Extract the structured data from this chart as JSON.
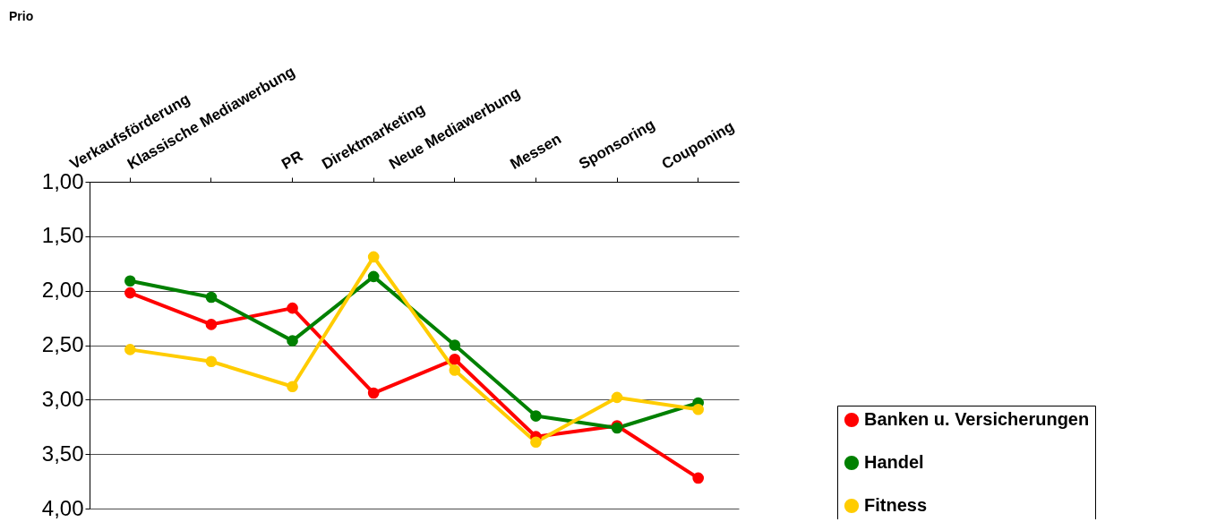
{
  "chart_data": {
    "type": "line",
    "annotations": [
      "Prio"
    ],
    "categories": [
      "Verkaufsförderung",
      "Klassische Mediawerbung",
      "PR",
      "Direktmarketing",
      "Neue Mediawerbung",
      "Messen",
      "Sponsoring",
      "Couponing"
    ],
    "series": [
      {
        "name": "Banken u. Versicherungen",
        "color": "#ff0000",
        "values": [
          2.02,
          2.31,
          2.16,
          2.94,
          2.63,
          3.34,
          3.24,
          3.72
        ]
      },
      {
        "name": "Handel",
        "color": "#008000",
        "values": [
          1.91,
          2.06,
          2.46,
          1.87,
          2.5,
          3.15,
          3.26,
          3.03
        ]
      },
      {
        "name": "Fitness",
        "color": "#ffcc00",
        "values": [
          2.54,
          2.65,
          2.88,
          1.69,
          2.73,
          3.39,
          2.98,
          3.09
        ]
      }
    ],
    "ylim": [
      4,
      1
    ],
    "yticks": [
      {
        "value": 1,
        "label": "1,00"
      },
      {
        "value": 1.5,
        "label": "1,50"
      },
      {
        "value": 2,
        "label": "2,00"
      },
      {
        "value": 2.5,
        "label": "2,50"
      },
      {
        "value": 3,
        "label": "3,00"
      },
      {
        "value": 3.5,
        "label": "3,50"
      },
      {
        "value": 4,
        "label": "4,00"
      }
    ],
    "grid": "y",
    "legend": "bottom right",
    "marker": "circle",
    "line_style": "solid"
  }
}
